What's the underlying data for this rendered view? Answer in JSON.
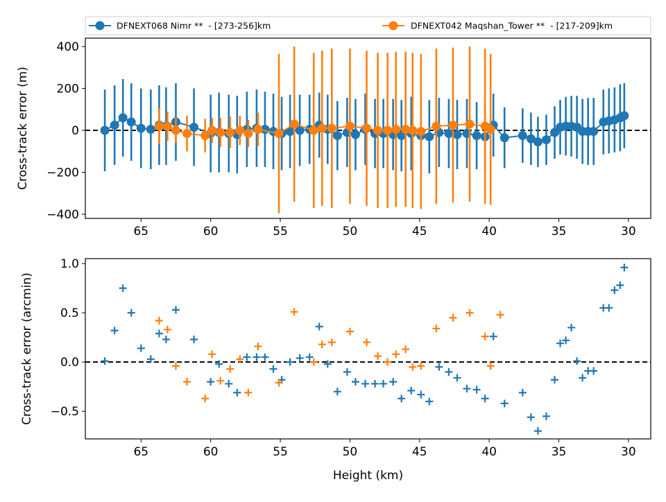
{
  "chart_data": [
    {
      "type": "line",
      "title": "",
      "xlabel": "",
      "ylabel": "Cross-track error (m)",
      "xlim": [
        69,
        28.4
      ],
      "ylim": [
        -420,
        440
      ],
      "x_ticks": [
        65,
        60,
        55,
        50,
        45,
        40,
        35,
        30
      ],
      "y_ticks": [
        400,
        200,
        0,
        -200,
        -400
      ],
      "reference_line": {
        "y": 0,
        "style": "dashed",
        "color": "#000000"
      },
      "legend": {
        "placement": "top",
        "entries": [
          {
            "label": "DFNEXT068 Nimr **  - [273-256]km",
            "color": "#1f77b4"
          },
          {
            "label": "DFNEXT042 Maqshan_Tower **  - [217-209]km",
            "color": "#ff7f0e"
          }
        ]
      },
      "series": [
        {
          "name": "DFNEXT068 Nimr **  - [273-256]km",
          "color": "#1f77b4",
          "x": [
            67.6,
            66.9,
            66.3,
            65.7,
            65.0,
            64.3,
            63.7,
            63.2,
            62.5,
            61.2,
            60.0,
            59.4,
            58.7,
            58.1,
            57.4,
            56.7,
            56.1,
            55.5,
            54.9,
            54.3,
            53.6,
            52.9,
            52.2,
            51.6,
            50.9,
            50.2,
            49.6,
            48.9,
            48.2,
            47.6,
            46.9,
            46.3,
            45.6,
            44.9,
            44.3,
            43.6,
            42.9,
            42.3,
            41.6,
            40.9,
            40.3,
            39.7,
            38.9,
            37.6,
            37.0,
            36.5,
            35.9,
            35.3,
            34.9,
            34.5,
            34.1,
            33.7,
            33.3,
            32.9,
            32.5,
            31.8,
            31.4,
            31.0,
            30.6,
            30.3
          ],
          "y": [
            0,
            25,
            60,
            40,
            10,
            5,
            25,
            20,
            40,
            15,
            -15,
            -10,
            -15,
            -20,
            5,
            10,
            5,
            -5,
            -15,
            -5,
            0,
            5,
            25,
            5,
            -25,
            -10,
            -20,
            5,
            -15,
            -15,
            -20,
            -25,
            -15,
            -25,
            -30,
            -10,
            -15,
            -20,
            -15,
            -25,
            -30,
            25,
            -35,
            -25,
            -40,
            -55,
            -45,
            -10,
            15,
            20,
            20,
            15,
            -5,
            -5,
            -5,
            40,
            45,
            50,
            60,
            70
          ],
          "err": [
            195,
            190,
            185,
            185,
            190,
            190,
            190,
            185,
            185,
            185,
            185,
            190,
            185,
            185,
            180,
            185,
            180,
            180,
            175,
            175,
            170,
            165,
            155,
            165,
            165,
            165,
            170,
            170,
            165,
            165,
            170,
            170,
            175,
            175,
            175,
            165,
            165,
            165,
            165,
            160,
            160,
            150,
            145,
            130,
            125,
            120,
            120,
            125,
            130,
            140,
            145,
            150,
            155,
            160,
            160,
            155,
            155,
            155,
            160,
            155
          ]
        },
        {
          "name": "DFNEXT042 Maqshan_Tower **  - [217-209]km",
          "color": "#ff7f0e",
          "x": [
            63.7,
            63.1,
            62.5,
            61.7,
            60.4,
            59.9,
            59.3,
            58.6,
            57.9,
            57.3,
            56.6,
            55.1,
            54.0,
            52.6,
            52.0,
            51.3,
            50.0,
            48.8,
            48.0,
            47.3,
            46.7,
            46.0,
            45.5,
            44.9,
            43.8,
            42.6,
            41.4,
            40.3,
            39.9
          ],
          "y": [
            20,
            20,
            0,
            -15,
            -25,
            0,
            -10,
            -10,
            0,
            -15,
            5,
            -15,
            30,
            0,
            10,
            10,
            20,
            10,
            0,
            0,
            5,
            5,
            0,
            -5,
            20,
            25,
            30,
            20,
            5
          ],
          "err": [
            85,
            70,
            60,
            85,
            80,
            60,
            70,
            75,
            70,
            65,
            80,
            380,
            370,
            370,
            370,
            380,
            370,
            370,
            370,
            370,
            370,
            370,
            370,
            370,
            370,
            370,
            370,
            370,
            360
          ]
        }
      ]
    },
    {
      "type": "scatter",
      "title": "",
      "xlabel": "Height (km)",
      "ylabel": "Cross-track error (arcmin)",
      "xlim": [
        69,
        28.4
      ],
      "ylim": [
        -0.78,
        1.05
      ],
      "x_ticks": [
        65,
        60,
        55,
        50,
        45,
        40,
        35,
        30
      ],
      "y_ticks": [
        1.0,
        0.5,
        0.0,
        -0.5
      ],
      "reference_line": {
        "y": 0,
        "style": "dashed",
        "color": "#000000"
      },
      "series": [
        {
          "name": "DFNEXT068 Nimr **  - [273-256]km",
          "color": "#1f77b4",
          "marker": "+",
          "x": [
            67.6,
            66.9,
            66.3,
            65.7,
            65.0,
            64.3,
            63.7,
            63.2,
            62.5,
            61.2,
            60.0,
            59.4,
            58.7,
            58.1,
            57.4,
            56.7,
            56.1,
            55.5,
            54.9,
            54.3,
            53.6,
            52.9,
            52.2,
            51.6,
            50.9,
            50.2,
            49.6,
            48.9,
            48.2,
            47.6,
            46.9,
            46.3,
            45.6,
            44.9,
            44.3,
            43.6,
            42.9,
            42.3,
            41.6,
            40.9,
            40.3,
            39.7,
            38.9,
            37.6,
            37.0,
            36.5,
            35.9,
            35.3,
            34.9,
            34.5,
            34.1,
            33.7,
            33.3,
            32.9,
            32.5,
            31.8,
            31.4,
            31.0,
            30.6,
            30.3
          ],
          "y": [
            0.01,
            0.32,
            0.75,
            0.5,
            0.14,
            0.03,
            0.29,
            0.23,
            0.53,
            0.23,
            -0.2,
            -0.02,
            -0.22,
            -0.31,
            0.05,
            0.05,
            0.05,
            -0.07,
            -0.18,
            0.0,
            0.04,
            0.05,
            0.36,
            -0.02,
            -0.3,
            -0.1,
            -0.2,
            -0.22,
            -0.22,
            -0.22,
            -0.2,
            -0.37,
            -0.29,
            -0.33,
            -0.4,
            -0.05,
            -0.1,
            -0.16,
            -0.27,
            -0.28,
            -0.37,
            0.26,
            -0.42,
            -0.31,
            -0.56,
            -0.7,
            -0.55,
            -0.18,
            0.19,
            0.22,
            0.35,
            0.01,
            -0.16,
            -0.09,
            -0.09,
            0.55,
            0.55,
            0.73,
            0.78,
            0.96
          ]
        },
        {
          "name": "DFNEXT042 Maqshan_Tower **  - [217-209]km",
          "color": "#ff7f0e",
          "marker": "+",
          "x": [
            63.7,
            63.1,
            62.5,
            61.7,
            60.4,
            59.9,
            59.3,
            58.6,
            57.9,
            57.3,
            56.6,
            55.1,
            54.0,
            52.6,
            52.0,
            51.3,
            50.0,
            48.8,
            48.0,
            47.3,
            46.7,
            46.0,
            45.5,
            44.9,
            43.8,
            42.6,
            41.4,
            40.3,
            39.9,
            39.2
          ],
          "y": [
            0.42,
            0.33,
            -0.04,
            -0.2,
            -0.37,
            0.08,
            -0.19,
            -0.07,
            0.03,
            -0.31,
            0.16,
            -0.21,
            0.51,
            0.0,
            0.18,
            0.2,
            0.31,
            0.2,
            0.06,
            0.0,
            0.08,
            0.13,
            -0.05,
            -0.04,
            0.34,
            0.45,
            0.5,
            0.26,
            -0.04,
            0.48
          ]
        }
      ]
    }
  ]
}
